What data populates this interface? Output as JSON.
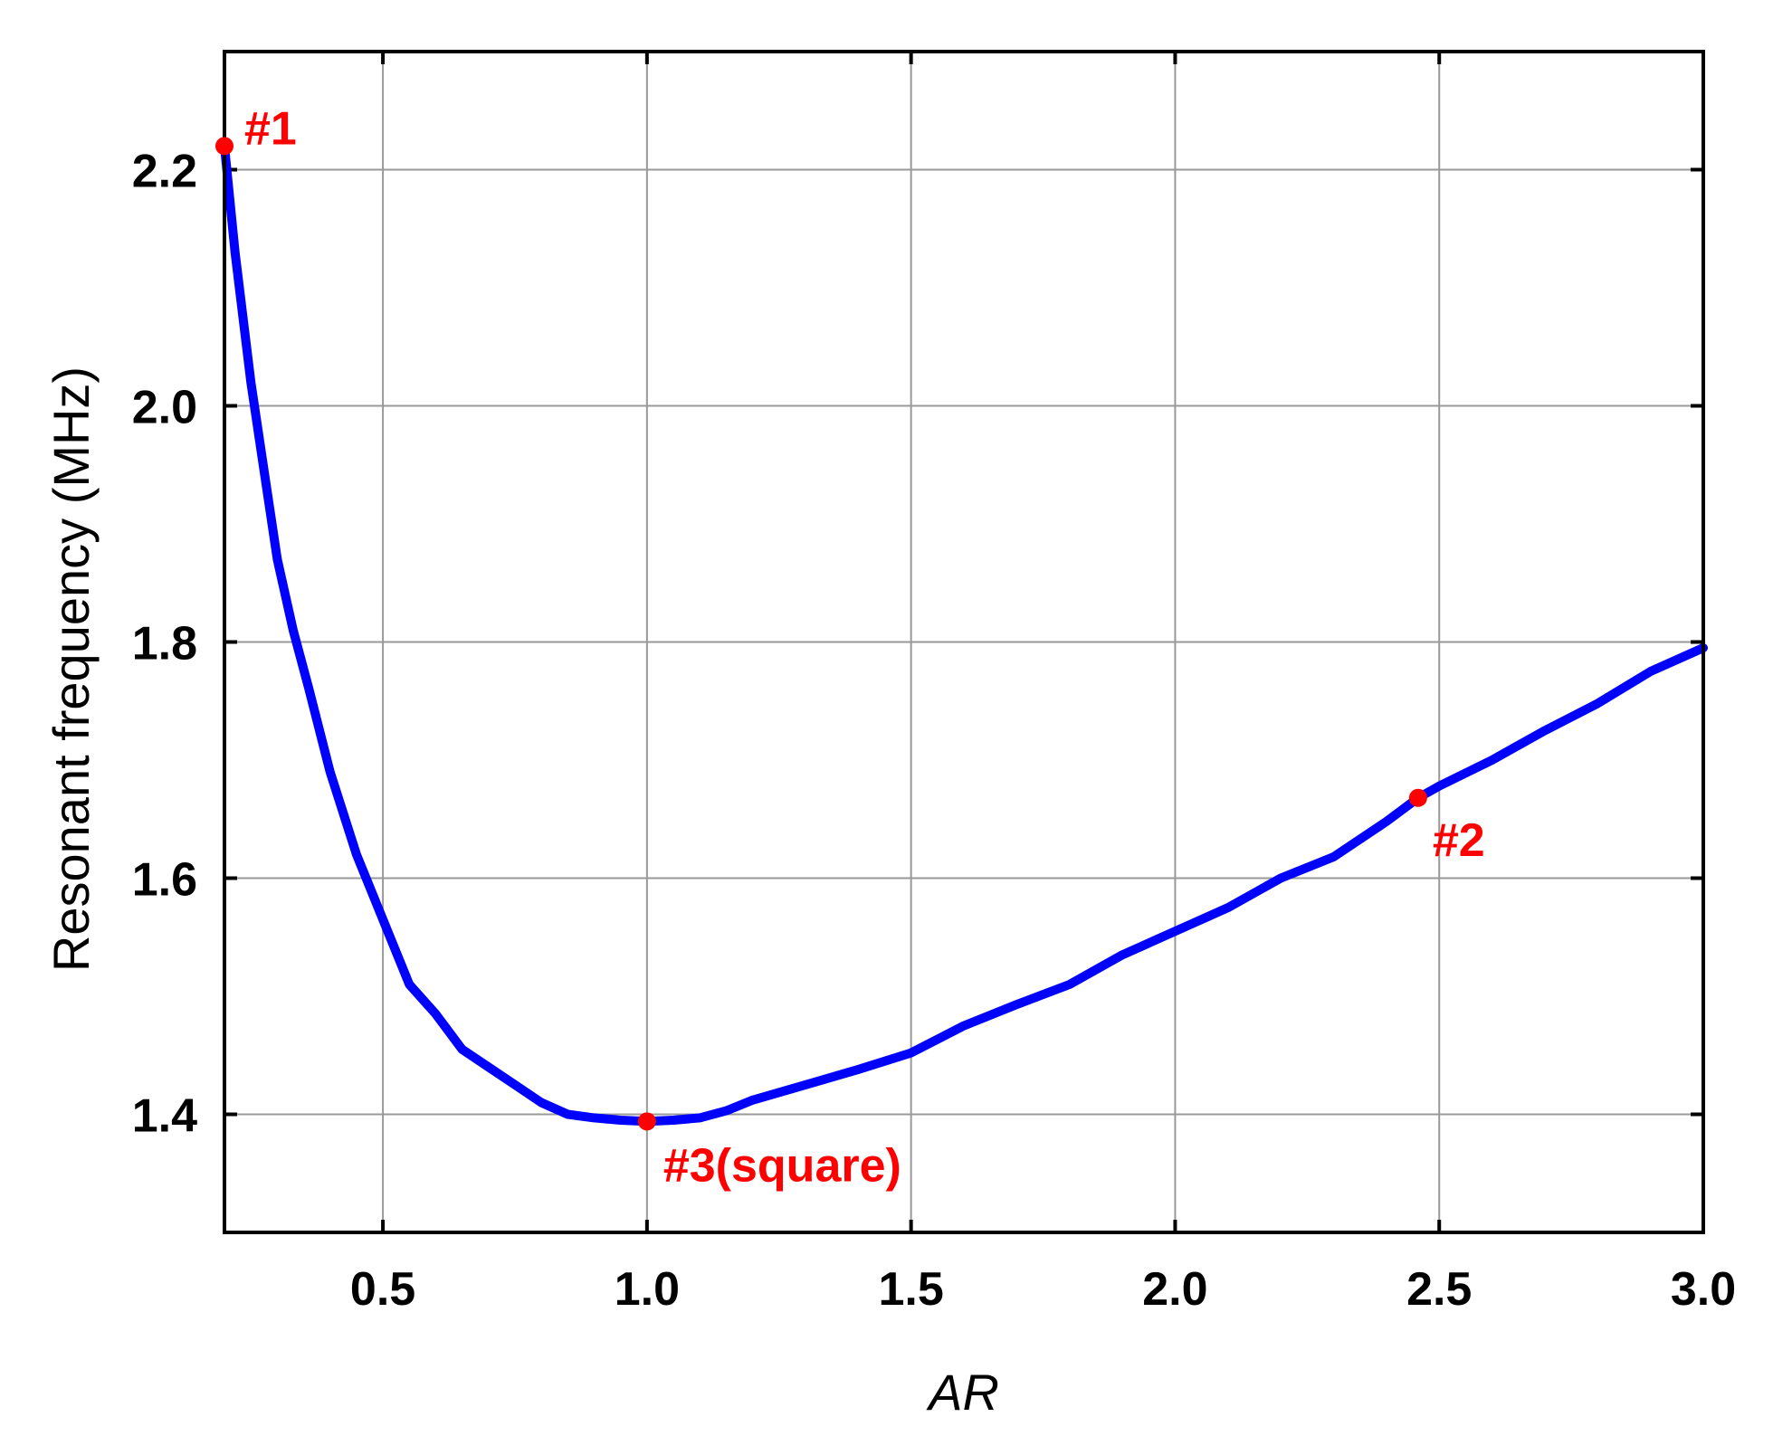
{
  "chart_data": {
    "type": "line",
    "title": "",
    "xlabel": "AR",
    "ylabel": "Resonant frequency (MHz)",
    "xlim": [
      0.2,
      3.0
    ],
    "ylim": [
      1.3,
      2.3
    ],
    "xticks": [
      0.5,
      1.0,
      1.5,
      2.0,
      2.5,
      3.0
    ],
    "xtick_labels": [
      "0.5",
      "1.0",
      "1.5",
      "2.0",
      "2.5",
      "3.0"
    ],
    "yticks": [
      1.4,
      1.6,
      1.8,
      2.0,
      2.2
    ],
    "ytick_labels": [
      "1.4",
      "1.6",
      "1.8",
      "2.0",
      "2.2"
    ],
    "grid": true,
    "legend": "none",
    "series": [
      {
        "name": "",
        "color": "#0000ff",
        "x": [
          0.2,
          0.22,
          0.25,
          0.28,
          0.3,
          0.33,
          0.36,
          0.4,
          0.45,
          0.5,
          0.55,
          0.6,
          0.65,
          0.7,
          0.75,
          0.8,
          0.85,
          0.9,
          0.95,
          1.0,
          1.05,
          1.1,
          1.15,
          1.2,
          1.3,
          1.4,
          1.5,
          1.6,
          1.7,
          1.8,
          1.9,
          2.0,
          2.1,
          2.2,
          2.3,
          2.4,
          2.46,
          2.5,
          2.6,
          2.7,
          2.8,
          2.9,
          3.0
        ],
        "y": [
          2.22,
          2.13,
          2.02,
          1.93,
          1.87,
          1.81,
          1.76,
          1.69,
          1.62,
          1.565,
          1.51,
          1.485,
          1.455,
          1.44,
          1.425,
          1.41,
          1.4,
          1.397,
          1.395,
          1.394,
          1.395,
          1.397,
          1.403,
          1.412,
          1.425,
          1.438,
          1.452,
          1.475,
          1.493,
          1.51,
          1.535,
          1.555,
          1.575,
          1.6,
          1.618,
          1.648,
          1.668,
          1.678,
          1.7,
          1.725,
          1.748,
          1.775,
          1.795
        ]
      }
    ],
    "markers": [
      {
        "label": "#1",
        "x": 0.2,
        "y": 2.22,
        "color": "#ff0000"
      },
      {
        "label": "#2",
        "x": 2.46,
        "y": 1.668,
        "color": "#ff0000"
      },
      {
        "label": "#3(square)",
        "x": 1.0,
        "y": 1.394,
        "color": "#ff0000"
      }
    ],
    "colors": {
      "frame": "#000000",
      "grid": "#999999",
      "line": "#0000ff",
      "annotation": "#ff0000"
    }
  }
}
